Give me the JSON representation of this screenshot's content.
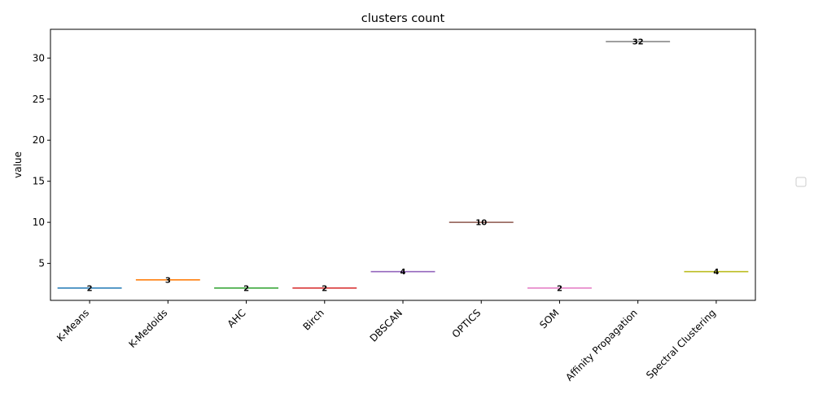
{
  "chart_data": {
    "type": "bar",
    "title": "clusters count",
    "xlabel": "",
    "ylabel": "value",
    "categories": [
      "K-Means",
      "K-Medoids",
      "AHC",
      "Birch",
      "DBSCAN",
      "OPTICS",
      "SOM",
      "Affinity Propagation",
      "Spectral Clustering"
    ],
    "values": [
      2,
      3,
      2,
      2,
      4,
      10,
      2,
      32,
      4
    ],
    "data_labels": [
      "2",
      "3",
      "2",
      "2",
      "4",
      "10",
      "2",
      "32",
      "4"
    ],
    "colors": [
      "#1f77b4",
      "#ff7f0e",
      "#2ca02c",
      "#d62728",
      "#9467bd",
      "#8c564b",
      "#e377c2",
      "#7f7f7f",
      "#bcbd22"
    ],
    "ylim": [
      0.5,
      33.5
    ],
    "yticks": [
      5,
      10,
      15,
      20,
      25,
      30
    ],
    "grid": false,
    "legend": {
      "placement": "right",
      "entries": []
    }
  }
}
